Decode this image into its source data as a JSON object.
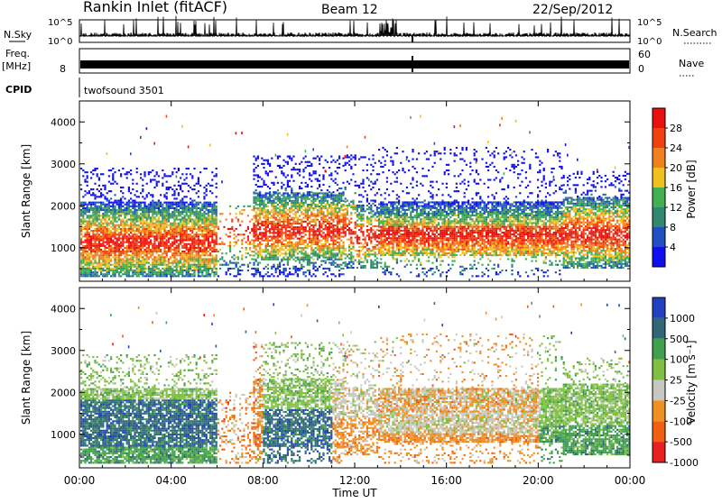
{
  "header": {
    "station": "Rankin Inlet (fitACF)",
    "beam": "Beam 12",
    "date": "22/Sep/2012"
  },
  "strips": {
    "nsky_label": "N.Sky",
    "nsky_ticks": [
      "10^5",
      "10^0"
    ],
    "nsearch_label": "N.Search",
    "nsearch_ticks": [
      "10^5",
      "10^0"
    ],
    "freq_label": "Freq.",
    "freq_unit": "[MHz]",
    "freq_ticks": [
      "8"
    ],
    "nave_label": "Nave",
    "nave_ticks": [
      "60",
      "0"
    ],
    "cpid_label": "CPID",
    "cpid_value": "twofsound 3501"
  },
  "chart_data": [
    {
      "type": "heatmap",
      "name_panel": "power",
      "ylabel": "Slant Range [km]",
      "y_ticks": [
        1000,
        2000,
        3000,
        4000
      ],
      "ylim": [
        200,
        4500
      ],
      "xlim": [
        0,
        24
      ],
      "colorbar_label": "Power [dB]",
      "colorbar_ticks": [
        "4",
        "8",
        "12",
        "16",
        "20",
        "24",
        "28"
      ],
      "colors": [
        "#1010ee",
        "#2050c0",
        "#308870",
        "#40b050",
        "#f0c020",
        "#f08020",
        "#f04010",
        "#e81010"
      ]
    },
    {
      "type": "heatmap",
      "name_panel": "velocity",
      "ylabel": "Slant Range [km]",
      "y_ticks": [
        1000,
        2000,
        3000,
        4000
      ],
      "ylim": [
        200,
        4500
      ],
      "xlim": [
        0,
        24
      ],
      "colorbar_label": "Velocity [m s⁻¹]",
      "colorbar_ticks": [
        "1000",
        "500",
        "100",
        "25",
        "-25",
        "-100",
        "-500",
        "-1000"
      ],
      "colors": [
        "#2040c0",
        "#306878",
        "#40a050",
        "#80c040",
        "#c8c8c0",
        "#f09020",
        "#f06010",
        "#e82020"
      ]
    }
  ],
  "x_axis": {
    "tick_labels": [
      "00:00",
      "04:00",
      "08:00",
      "12:00",
      "16:00",
      "20:00",
      "00:00"
    ],
    "tick_hours": [
      0,
      4,
      8,
      12,
      16,
      20,
      24
    ],
    "xlabel": "Time UT"
  }
}
